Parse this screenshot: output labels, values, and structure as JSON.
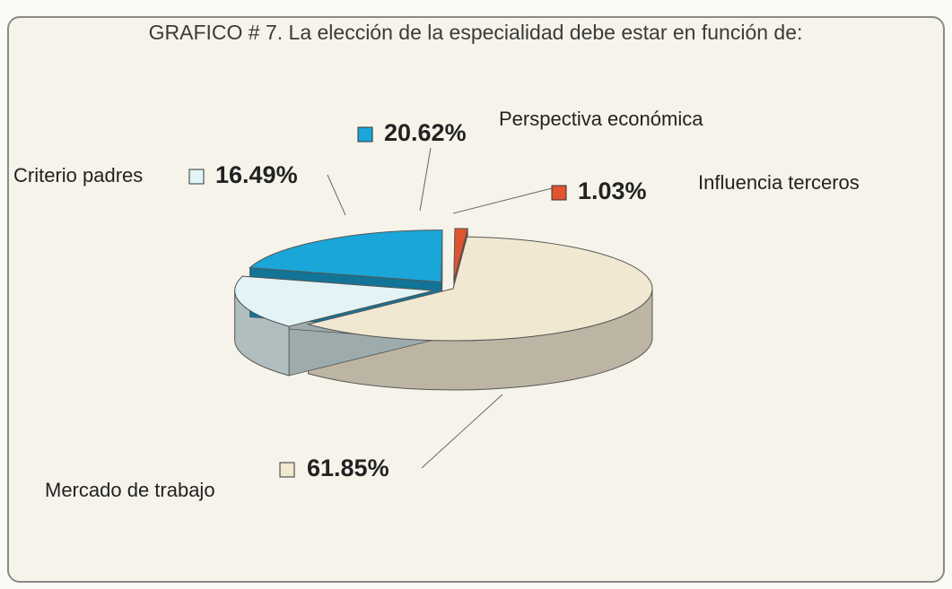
{
  "chart_data": {
    "type": "pie",
    "title": "GRAFICO # 7. La elección de la especialidad debe estar en función de:",
    "categories": [
      "Mercado de trabajo",
      "Criterio padres",
      "Perspectiva económica",
      "Influencia terceros"
    ],
    "values": [
      61.85,
      16.49,
      20.62,
      1.03
    ],
    "value_labels": [
      "61.85%",
      "16.49%",
      "20.62%",
      "1.03%"
    ],
    "colors": [
      "#f1e8d2",
      "#e2f4f6",
      "#1aa6d8",
      "#e0532f"
    ]
  }
}
